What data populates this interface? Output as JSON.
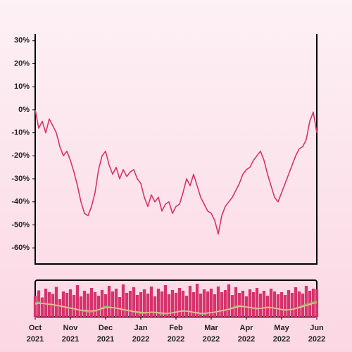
{
  "chart_data": [
    {
      "type": "line",
      "color": "#d6336c",
      "ylim": [
        -67,
        33
      ],
      "yticks": [
        {
          "value": 30,
          "label": "30%"
        },
        {
          "value": 20,
          "label": "20%"
        },
        {
          "value": 10,
          "label": "10%"
        },
        {
          "value": 0,
          "label": "0%"
        },
        {
          "value": -10,
          "label": "-10%"
        },
        {
          "value": -20,
          "label": "-20%"
        },
        {
          "value": -30,
          "label": "-30%"
        },
        {
          "value": -40,
          "label": "-40%"
        },
        {
          "value": -50,
          "label": "-50%"
        },
        {
          "value": -60,
          "label": "-60%"
        }
      ],
      "values": [
        0,
        -8,
        -5,
        -10,
        -4,
        -7,
        -10,
        -16,
        -20,
        -18,
        -22,
        -27,
        -33,
        -40,
        -45,
        -46,
        -42,
        -36,
        -26,
        -20,
        -18,
        -24,
        -28,
        -25,
        -30,
        -26,
        -29,
        -27,
        -26,
        -30,
        -32,
        -38,
        -42,
        -37,
        -40,
        -38,
        -44,
        -41,
        -40,
        -45,
        -42,
        -41,
        -36,
        -30,
        -33,
        -28,
        -33,
        -38,
        -41,
        -44,
        -45,
        -48,
        -54,
        -46,
        -42,
        -40,
        -38,
        -35,
        -32,
        -28,
        -26,
        -25,
        -22,
        -20,
        -18,
        -22,
        -28,
        -33,
        -38,
        -40,
        -36,
        -32,
        -28,
        -24,
        -20,
        -17,
        -16,
        -13,
        -5,
        -1,
        -10
      ]
    },
    {
      "type": "bar",
      "color": "#d6336c",
      "ylim": [
        0,
        100
      ],
      "categories": [
        "Oct 2021",
        null,
        null,
        null,
        null,
        null,
        null,
        null,
        null,
        null,
        "Nov 2021",
        null,
        null,
        null,
        null,
        null,
        null,
        null,
        null,
        null,
        "Dec 2021",
        null,
        null,
        null,
        null,
        null,
        null,
        null,
        null,
        null,
        "Jan 2022",
        null,
        null,
        null,
        null,
        null,
        null,
        null,
        null,
        null,
        "Feb 2022",
        null,
        null,
        null,
        null,
        null,
        null,
        null,
        null,
        null,
        "Mar 2022",
        null,
        null,
        null,
        null,
        null,
        null,
        null,
        null,
        null,
        "Apr 2022",
        null,
        null,
        null,
        null,
        null,
        null,
        null,
        null,
        null,
        "May 2022",
        null,
        null,
        null,
        null,
        null,
        null,
        null,
        null,
        null,
        "Jun 2022"
      ],
      "values": [
        60,
        75,
        55,
        80,
        70,
        65,
        85,
        50,
        72,
        68,
        78,
        62,
        90,
        58,
        74,
        66,
        82,
        70,
        60,
        76,
        64,
        88,
        72,
        80,
        56,
        92,
        68,
        74,
        84,
        62,
        70,
        78,
        66,
        86,
        58,
        80,
        72,
        90,
        64,
        76,
        68,
        82,
        74,
        60,
        88,
        70,
        94,
        66,
        78,
        72,
        80,
        64,
        86,
        70,
        76,
        92,
        62,
        84,
        68,
        74,
        58,
        78,
        70,
        82,
        66,
        74,
        60,
        80,
        72,
        64,
        70,
        62,
        76,
        68,
        84,
        72,
        66,
        88,
        74,
        80,
        78
      ],
      "lines": [
        {
          "color": "#7cc85a",
          "values": [
            40,
            42,
            38,
            36,
            35,
            34,
            32,
            30,
            28,
            26,
            24,
            22,
            20,
            18,
            16,
            14,
            14,
            16,
            20,
            26,
            30,
            28,
            26,
            24,
            22,
            20,
            18,
            16,
            14,
            12,
            10,
            10,
            12,
            14,
            12,
            10,
            8,
            8,
            10,
            12,
            14,
            16,
            18,
            16,
            14,
            12,
            10,
            8,
            8,
            10,
            12,
            14,
            16,
            18,
            20,
            22,
            26,
            30,
            32,
            30,
            28,
            26,
            24,
            22,
            24,
            26,
            28,
            26,
            24,
            22,
            20,
            18,
            20,
            22,
            24,
            28,
            32,
            36,
            38,
            42,
            44
          ]
        },
        {
          "color": "#f7b79a",
          "values": [
            36,
            38,
            38,
            37,
            36,
            35,
            33,
            31,
            29,
            27,
            25,
            23,
            21,
            19,
            18,
            17,
            17,
            18,
            20,
            23,
            26,
            27,
            26,
            25,
            23,
            21,
            19,
            17,
            15,
            14,
            13,
            12,
            12,
            13,
            13,
            12,
            11,
            10,
            10,
            11,
            13,
            15,
            16,
            16,
            15,
            13,
            12,
            10,
            10,
            11,
            12,
            13,
            15,
            17,
            19,
            21,
            24,
            27,
            29,
            29,
            28,
            27,
            25,
            24,
            24,
            25,
            26,
            26,
            25,
            23,
            21,
            20,
            20,
            21,
            23,
            26,
            29,
            32,
            35,
            38,
            40
          ]
        }
      ]
    }
  ]
}
